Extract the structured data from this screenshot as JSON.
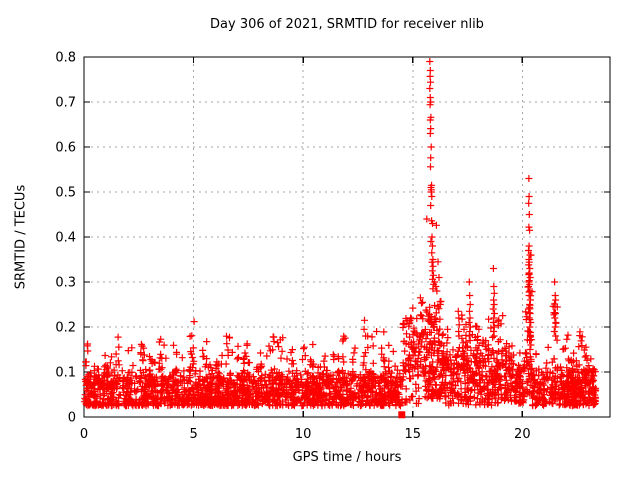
{
  "chart_data": {
    "type": "scatter",
    "title": "Day 306 of 2021, SRMTID for receiver nlib",
    "xlabel": "GPS time / hours",
    "ylabel": "SRMTID / TECUs",
    "xlim": [
      0,
      24
    ],
    "ylim": [
      0,
      0.8
    ],
    "xticks": [
      0,
      5,
      10,
      15,
      20
    ],
    "xtick_labels": [
      "0",
      "5",
      "10",
      "15",
      "20"
    ],
    "yticks": [
      0,
      0.1,
      0.2,
      0.3,
      0.4,
      0.5,
      0.6,
      0.7,
      0.8
    ],
    "ytick_labels": [
      "0",
      "0.1",
      "0.2",
      "0.3",
      "0.4",
      "0.5",
      "0.6",
      "0.7",
      "0.8"
    ],
    "grid": true,
    "grid_style": "dashed",
    "grid_color": "#a6a6a6",
    "border_color": "#000000",
    "background_color": "#ffffff",
    "marker": "plus",
    "marker_color": "#ff0000",
    "legend": "none",
    "special_marker": {
      "shape": "filled-square",
      "x": 14.5,
      "y": 0.005
    },
    "points_explicit": {
      "spike_16h": [
        [
          15.78,
          0.79
        ],
        [
          15.8,
          0.77
        ],
        [
          15.79,
          0.757
        ],
        [
          15.81,
          0.744
        ],
        [
          15.78,
          0.73
        ],
        [
          15.8,
          0.71
        ],
        [
          15.82,
          0.7
        ],
        [
          15.79,
          0.694
        ],
        [
          15.83,
          0.666
        ],
        [
          15.8,
          0.66
        ],
        [
          15.82,
          0.641
        ],
        [
          15.8,
          0.63
        ],
        [
          15.84,
          0.6
        ],
        [
          15.82,
          0.576
        ],
        [
          15.81,
          0.556
        ],
        [
          15.86,
          0.515
        ],
        [
          15.83,
          0.51
        ],
        [
          15.85,
          0.505
        ],
        [
          15.84,
          0.5
        ],
        [
          15.87,
          0.49
        ],
        [
          15.82,
          0.47
        ],
        [
          15.64,
          0.44
        ],
        [
          15.86,
          0.436
        ],
        [
          15.9,
          0.43
        ],
        [
          16.08,
          0.426
        ],
        [
          15.88,
          0.4
        ],
        [
          15.83,
          0.39
        ],
        [
          15.9,
          0.38
        ],
        [
          15.87,
          0.365
        ],
        [
          15.92,
          0.35
        ],
        [
          15.88,
          0.344
        ],
        [
          15.93,
          0.335
        ],
        [
          15.89,
          0.325
        ],
        [
          15.94,
          0.315
        ],
        [
          15.9,
          0.306
        ],
        [
          16.0,
          0.3
        ],
        [
          15.95,
          0.295
        ],
        [
          16.05,
          0.29
        ],
        [
          15.92,
          0.285
        ],
        [
          16.1,
          0.28
        ],
        [
          16.15,
          0.345
        ],
        [
          16.2,
          0.31
        ]
      ],
      "spike_20h": [
        [
          20.3,
          0.53
        ],
        [
          20.31,
          0.49
        ],
        [
          20.29,
          0.475
        ],
        [
          20.32,
          0.45
        ],
        [
          20.3,
          0.422
        ],
        [
          20.33,
          0.415
        ],
        [
          20.31,
          0.38
        ],
        [
          20.28,
          0.37
        ],
        [
          20.35,
          0.36
        ],
        [
          20.3,
          0.35
        ],
        [
          20.32,
          0.344
        ],
        [
          20.29,
          0.338
        ],
        [
          20.34,
          0.33
        ],
        [
          20.31,
          0.32
        ],
        [
          20.36,
          0.31
        ],
        [
          20.3,
          0.3
        ],
        [
          20.33,
          0.295
        ],
        [
          20.28,
          0.29
        ],
        [
          20.35,
          0.28
        ],
        [
          20.31,
          0.27
        ],
        [
          20.37,
          0.26
        ],
        [
          20.33,
          0.25
        ],
        [
          20.29,
          0.24
        ],
        [
          20.36,
          0.23
        ],
        [
          20.32,
          0.22
        ],
        [
          20.38,
          0.21
        ],
        [
          20.34,
          0.2
        ],
        [
          20.3,
          0.19
        ],
        [
          20.37,
          0.18
        ],
        [
          20.33,
          0.17
        ],
        [
          20.39,
          0.16
        ],
        [
          20.35,
          0.15
        ]
      ],
      "minor_peaks": [
        [
          18.68,
          0.33
        ],
        [
          18.7,
          0.29
        ],
        [
          18.72,
          0.275
        ],
        [
          18.69,
          0.26
        ],
        [
          18.71,
          0.25
        ],
        [
          18.67,
          0.24
        ],
        [
          18.73,
          0.23
        ],
        [
          18.7,
          0.22
        ],
        [
          18.68,
          0.21
        ],
        [
          18.72,
          0.2
        ],
        [
          18.69,
          0.19
        ],
        [
          18.71,
          0.18
        ],
        [
          17.58,
          0.3
        ],
        [
          17.6,
          0.27
        ],
        [
          17.62,
          0.25
        ],
        [
          17.59,
          0.235
        ],
        [
          17.61,
          0.22
        ],
        [
          17.57,
          0.21
        ],
        [
          17.63,
          0.2
        ],
        [
          17.6,
          0.19
        ],
        [
          17.58,
          0.18
        ],
        [
          17.62,
          0.17
        ],
        [
          17.08,
          0.235
        ],
        [
          17.1,
          0.22
        ],
        [
          17.12,
          0.205
        ],
        [
          17.09,
          0.19
        ],
        [
          17.11,
          0.18
        ],
        [
          21.47,
          0.3
        ],
        [
          21.5,
          0.27
        ],
        [
          21.52,
          0.26
        ],
        [
          21.49,
          0.245
        ],
        [
          21.51,
          0.23
        ],
        [
          21.48,
          0.22
        ],
        [
          21.53,
          0.21
        ],
        [
          21.5,
          0.2
        ],
        [
          21.46,
          0.19
        ],
        [
          21.52,
          0.18
        ],
        [
          15.0,
          0.242
        ],
        [
          15.35,
          0.265
        ],
        [
          15.45,
          0.255
        ],
        [
          14.9,
          0.22
        ],
        [
          15.4,
          0.253
        ],
        [
          12.8,
          0.215
        ],
        [
          12.78,
          0.195
        ],
        [
          13.35,
          0.19
        ],
        [
          12.85,
          0.18
        ]
      ]
    },
    "point_cloud_model": {
      "seed": 306,
      "burst_width_default": 0.13,
      "segments": [
        {
          "x0": 0.02,
          "x1": 14.55,
          "n": 1600,
          "base": 0.025,
          "spread": 0.065,
          "pow": 1.6,
          "tail": 0.06,
          "tailPow": 7
        },
        {
          "x0": 14.55,
          "x1": 15.55,
          "n": 95,
          "base": 0.085,
          "spread": 0.125,
          "pow": 1.4,
          "tail": 0.03,
          "tailPow": 4
        },
        {
          "x0": 14.55,
          "x1": 15.45,
          "n": 14,
          "base": 0.025,
          "spread": 0.05,
          "pow": 1.5,
          "tail": 0,
          "tailPow": 1
        },
        {
          "x0": 15.55,
          "x1": 16.3,
          "n": 130,
          "base": 0.04,
          "spread": 0.2,
          "pow": 1.6,
          "tail": 0.06,
          "tailPow": 4
        },
        {
          "x0": 16.3,
          "x1": 19.6,
          "n": 380,
          "base": 0.025,
          "spread": 0.12,
          "pow": 1.3,
          "tail": 0.1,
          "tailPow": 5
        },
        {
          "x0": 19.6,
          "x1": 20.15,
          "n": 70,
          "base": 0.03,
          "spread": 0.08,
          "pow": 1.4,
          "tail": 0.06,
          "tailPow": 5
        },
        {
          "x0": 20.15,
          "x1": 20.45,
          "n": 55,
          "base": 0.05,
          "spread": 0.28,
          "pow": 1.8,
          "tail": 0.05,
          "tailPow": 3
        },
        {
          "x0": 20.45,
          "x1": 21.4,
          "n": 95,
          "base": 0.025,
          "spread": 0.07,
          "pow": 1.6,
          "tail": 0.07,
          "tailPow": 6
        },
        {
          "x0": 21.4,
          "x1": 21.65,
          "n": 30,
          "base": 0.04,
          "spread": 0.22,
          "pow": 2.2,
          "tail": 0,
          "tailPow": 1
        },
        {
          "x0": 21.65,
          "x1": 23.35,
          "n": 260,
          "base": 0.025,
          "spread": 0.08,
          "pow": 1.6,
          "tail": 0.09,
          "tailPow": 7
        }
      ],
      "bursts": [
        {
          "x": 0.1,
          "n": 10,
          "base": 0.07,
          "amp": 0.1
        },
        {
          "x": 0.55,
          "n": 8,
          "base": 0.07,
          "amp": 0.08
        },
        {
          "x": 1.0,
          "n": 9,
          "base": 0.08,
          "amp": 0.09
        },
        {
          "x": 1.5,
          "n": 9,
          "base": 0.08,
          "amp": 0.1
        },
        {
          "x": 2.1,
          "n": 8,
          "base": 0.07,
          "amp": 0.09
        },
        {
          "x": 2.6,
          "n": 9,
          "base": 0.08,
          "amp": 0.1
        },
        {
          "x": 3.1,
          "n": 8,
          "base": 0.07,
          "amp": 0.08
        },
        {
          "x": 3.55,
          "n": 9,
          "base": 0.08,
          "amp": 0.1
        },
        {
          "x": 4.15,
          "n": 8,
          "base": 0.07,
          "amp": 0.09
        },
        {
          "x": 4.9,
          "n": 10,
          "base": 0.08,
          "amp": 0.15
        },
        {
          "x": 5.5,
          "n": 8,
          "base": 0.07,
          "amp": 0.1
        },
        {
          "x": 6.1,
          "n": 8,
          "base": 0.07,
          "amp": 0.09
        },
        {
          "x": 6.6,
          "n": 9,
          "base": 0.08,
          "amp": 0.1
        },
        {
          "x": 7.1,
          "n": 8,
          "base": 0.07,
          "amp": 0.09
        },
        {
          "x": 7.4,
          "n": 10,
          "base": 0.08,
          "amp": 0.13
        },
        {
          "x": 8.0,
          "n": 8,
          "base": 0.07,
          "amp": 0.09
        },
        {
          "x": 8.55,
          "n": 9,
          "base": 0.08,
          "amp": 0.1
        },
        {
          "x": 8.95,
          "n": 9,
          "base": 0.08,
          "amp": 0.12
        },
        {
          "x": 9.6,
          "n": 8,
          "base": 0.07,
          "amp": 0.09
        },
        {
          "x": 10.1,
          "n": 8,
          "base": 0.07,
          "amp": 0.1
        },
        {
          "x": 10.45,
          "n": 8,
          "base": 0.08,
          "amp": 0.1
        },
        {
          "x": 11.0,
          "n": 8,
          "base": 0.07,
          "amp": 0.09
        },
        {
          "x": 11.5,
          "n": 8,
          "base": 0.07,
          "amp": 0.08
        },
        {
          "x": 11.8,
          "n": 9,
          "base": 0.08,
          "amp": 0.1
        },
        {
          "x": 12.3,
          "n": 8,
          "base": 0.07,
          "amp": 0.09
        },
        {
          "x": 12.9,
          "n": 10,
          "base": 0.08,
          "amp": 0.12
        },
        {
          "x": 13.2,
          "n": 8,
          "base": 0.08,
          "amp": 0.1
        },
        {
          "x": 13.6,
          "n": 9,
          "base": 0.08,
          "amp": 0.11
        },
        {
          "x": 14.0,
          "n": 8,
          "base": 0.07,
          "amp": 0.09
        },
        {
          "x": 16.45,
          "n": 8,
          "base": 0.1,
          "amp": 0.12
        },
        {
          "x": 17.3,
          "n": 8,
          "base": 0.1,
          "amp": 0.12
        },
        {
          "x": 18.0,
          "n": 8,
          "base": 0.1,
          "amp": 0.12
        },
        {
          "x": 18.45,
          "n": 8,
          "base": 0.1,
          "amp": 0.11
        },
        {
          "x": 19.0,
          "n": 8,
          "base": 0.1,
          "amp": 0.12
        },
        {
          "x": 19.35,
          "n": 8,
          "base": 0.09,
          "amp": 0.11
        },
        {
          "x": 22.15,
          "n": 8,
          "base": 0.08,
          "amp": 0.12
        },
        {
          "x": 22.5,
          "n": 8,
          "base": 0.08,
          "amp": 0.11
        },
        {
          "x": 22.8,
          "n": 7,
          "base": 0.08,
          "amp": 0.1
        }
      ]
    }
  }
}
